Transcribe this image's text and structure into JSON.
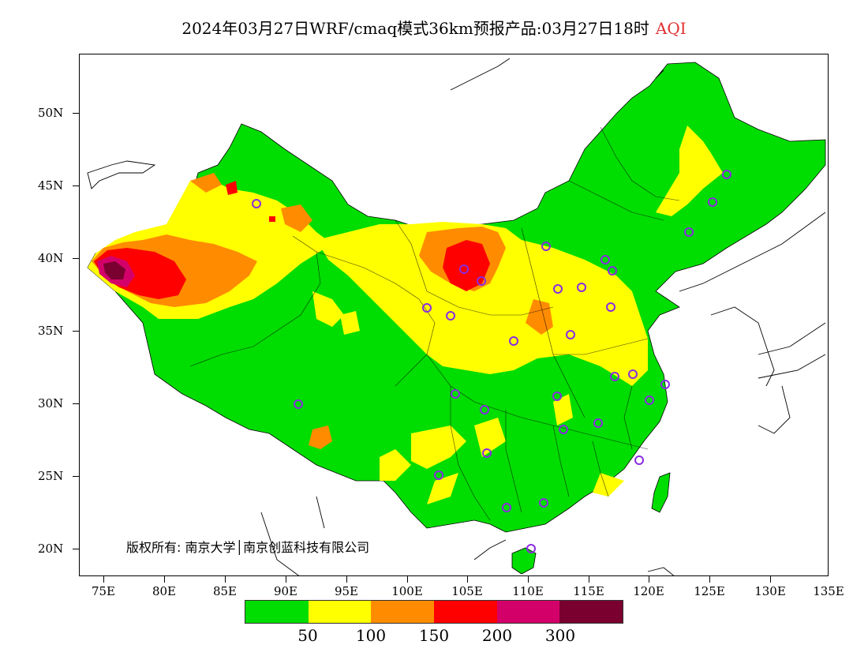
{
  "title": "2024年03月27日WRF/cmaq模式36km预报产品:03月27日18时",
  "title_tag": "AQI",
  "map": {
    "lat_labels": [
      "50N",
      "45N",
      "40N",
      "35N",
      "30N",
      "25N",
      "20N"
    ],
    "lon_labels": [
      "75E",
      "80E",
      "85E",
      "90E",
      "95E",
      "100E",
      "105E",
      "110E",
      "115E",
      "120E",
      "125E",
      "130E",
      "135E"
    ],
    "copyright": "版权所有: 南京大学│南京创蓝科技有限公司",
    "colors": {
      "good": "#00dd00",
      "moderate": "#ffff00",
      "usg": "#ff8c00",
      "unhealthy": "#ff0000",
      "very_unhealthy": "#d4006a",
      "hazardous": "#7a0030",
      "ocean": "#ffffff",
      "station": "#8a2be2"
    }
  },
  "legend": {
    "colors": [
      "#00dd00",
      "#ffff00",
      "#ff8c00",
      "#ff0000",
      "#d4006a",
      "#7a0030"
    ],
    "labels": [
      "50",
      "100",
      "150",
      "200",
      "300"
    ]
  }
}
